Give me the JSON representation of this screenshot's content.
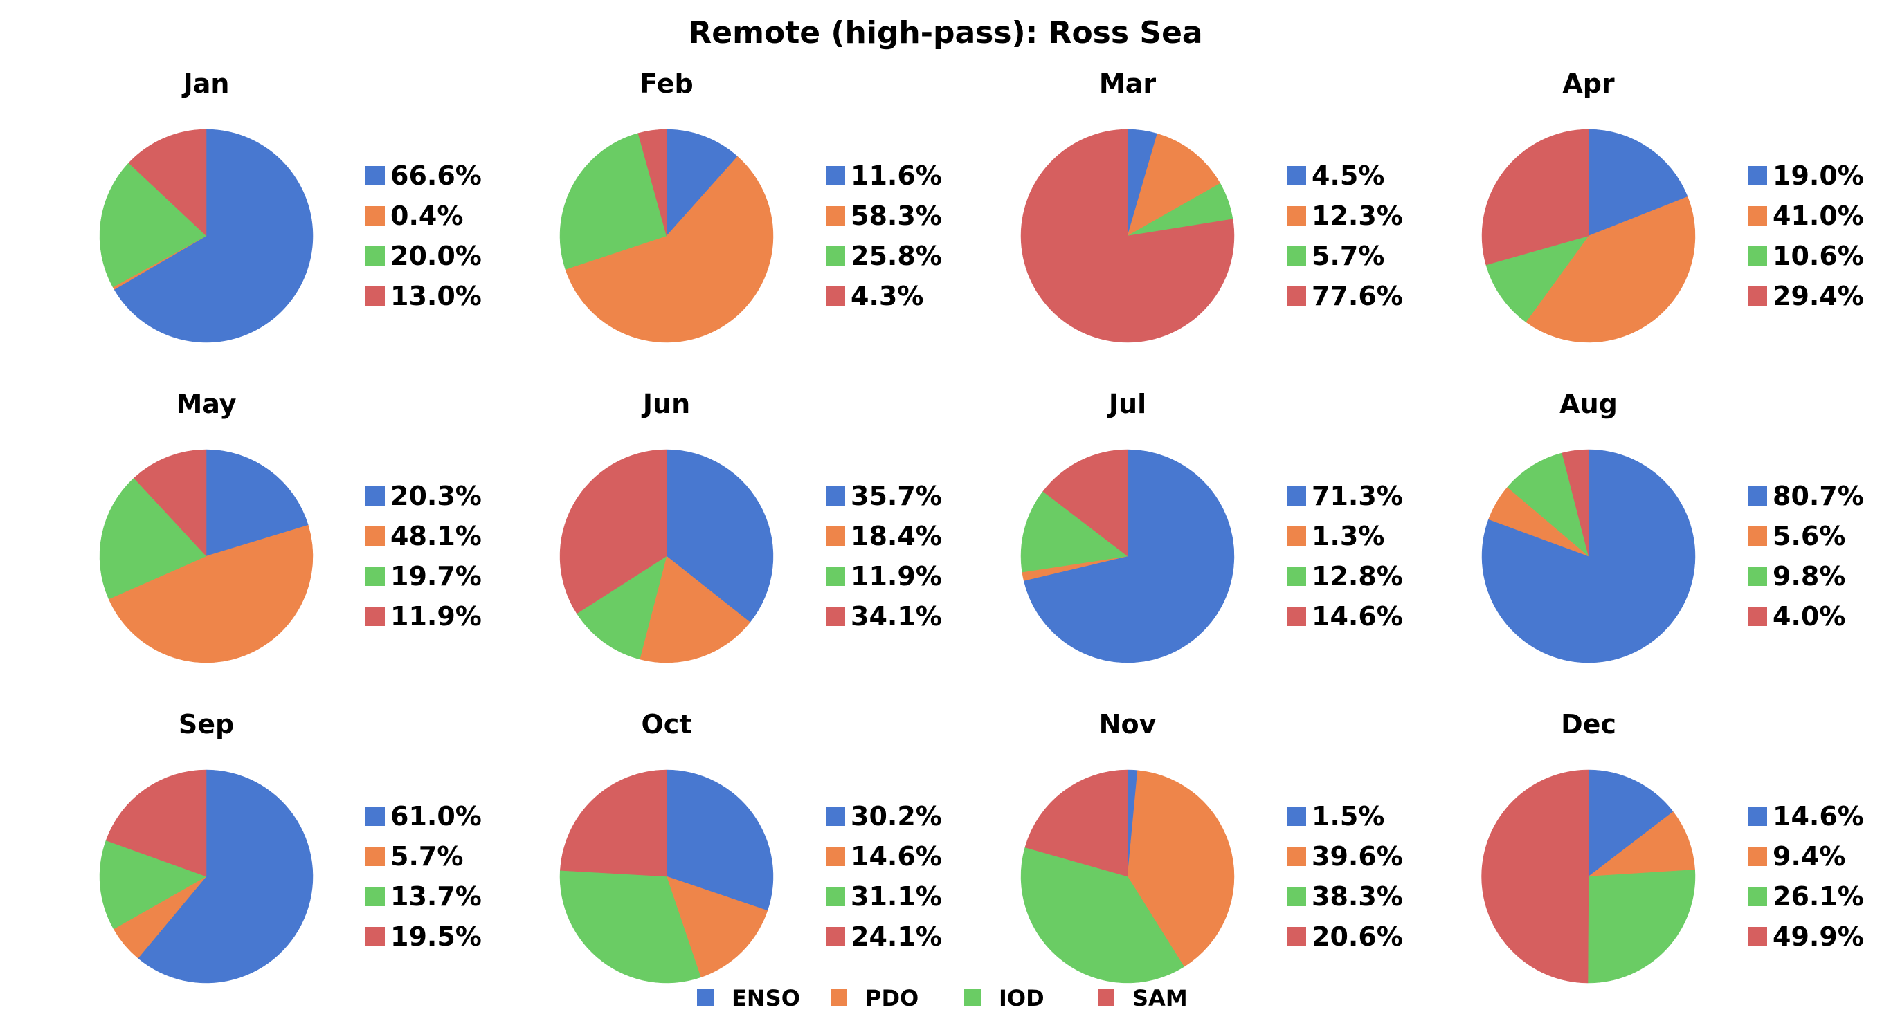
{
  "colors": {
    "ENSO": "#4878d0",
    "PDO": "#ee854a",
    "IOD": "#6acc64",
    "SAM": "#d65f5f"
  },
  "chart_data": {
    "type": "pie",
    "title": "Remote (high-pass): Ross Sea",
    "series_names": [
      "ENSO",
      "PDO",
      "IOD",
      "SAM"
    ],
    "panels": [
      {
        "month": "Jan",
        "values": [
          66.6,
          0.4,
          20.0,
          13.0
        ],
        "labels": [
          "66.6%",
          "0.4%",
          "20.0%",
          "13.0%"
        ]
      },
      {
        "month": "Feb",
        "values": [
          11.6,
          58.3,
          25.8,
          4.3
        ],
        "labels": [
          "11.6%",
          "58.3%",
          "25.8%",
          "4.3%"
        ]
      },
      {
        "month": "Mar",
        "values": [
          4.5,
          12.3,
          5.7,
          77.6
        ],
        "labels": [
          "4.5%",
          "12.3%",
          "5.7%",
          "77.6%"
        ]
      },
      {
        "month": "Apr",
        "values": [
          19.0,
          41.0,
          10.6,
          29.4
        ],
        "labels": [
          "19.0%",
          "41.0%",
          "10.6%",
          "29.4%"
        ]
      },
      {
        "month": "May",
        "values": [
          20.3,
          48.1,
          19.7,
          11.9
        ],
        "labels": [
          "20.3%",
          "48.1%",
          "19.7%",
          "11.9%"
        ]
      },
      {
        "month": "Jun",
        "values": [
          35.7,
          18.4,
          11.9,
          34.1
        ],
        "labels": [
          "35.7%",
          "18.4%",
          "11.9%",
          "34.1%"
        ]
      },
      {
        "month": "Jul",
        "values": [
          71.3,
          1.3,
          12.8,
          14.6
        ],
        "labels": [
          "71.3%",
          "1.3%",
          "12.8%",
          "14.6%"
        ]
      },
      {
        "month": "Aug",
        "values": [
          80.7,
          5.6,
          9.8,
          4.0
        ],
        "labels": [
          "80.7%",
          "5.6%",
          "9.8%",
          "4.0%"
        ]
      },
      {
        "month": "Sep",
        "values": [
          61.0,
          5.7,
          13.7,
          19.5
        ],
        "labels": [
          "61.0%",
          "5.7%",
          "13.7%",
          "19.5%"
        ]
      },
      {
        "month": "Oct",
        "values": [
          30.2,
          14.6,
          31.1,
          24.1
        ],
        "labels": [
          "30.2%",
          "14.6%",
          "31.1%",
          "24.1%"
        ]
      },
      {
        "month": "Nov",
        "values": [
          1.5,
          39.6,
          38.3,
          20.6
        ],
        "labels": [
          "1.5%",
          "39.6%",
          "38.3%",
          "20.6%"
        ]
      },
      {
        "month": "Dec",
        "values": [
          14.6,
          9.4,
          26.1,
          49.9
        ],
        "labels": [
          "14.6%",
          "9.4%",
          "26.1%",
          "49.9%"
        ]
      }
    ],
    "legend": {
      "placement": "bottom-center",
      "entries": [
        "ENSO",
        "PDO",
        "IOD",
        "SAM"
      ]
    }
  }
}
